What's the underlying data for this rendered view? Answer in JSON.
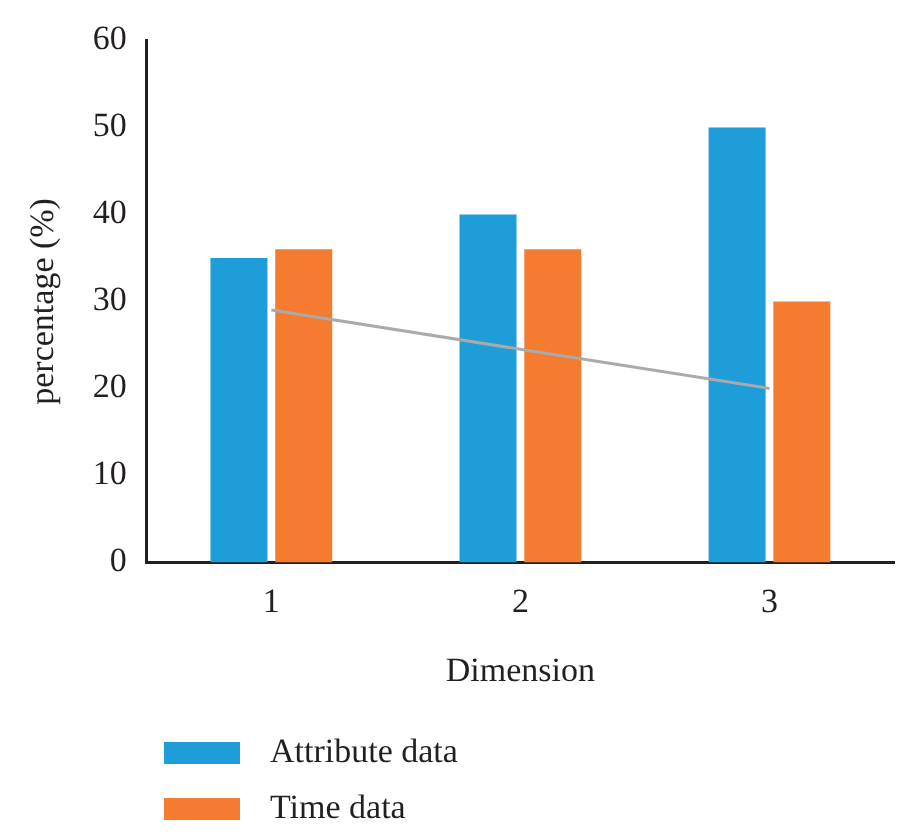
{
  "chart_data": {
    "type": "bar",
    "xlabel": "Dimension",
    "ylabel": "percentage (%)",
    "categories": [
      "1",
      "2",
      "3"
    ],
    "series": [
      {
        "name": "Attribute data",
        "color": "#1e9dd8",
        "values": [
          35,
          40,
          50
        ]
      },
      {
        "name": "Time data",
        "color": "#f47b30",
        "values": [
          36,
          36,
          30
        ]
      },
      {
        "type": "line",
        "color": "#aaaaaa",
        "values": [
          29,
          24.5,
          20
        ],
        "marker": "none"
      }
    ],
    "ylim": [
      0,
      60
    ],
    "yticks": [
      0,
      10,
      20,
      30,
      40,
      50,
      60
    ],
    "grid": false,
    "legend": "bottom"
  }
}
